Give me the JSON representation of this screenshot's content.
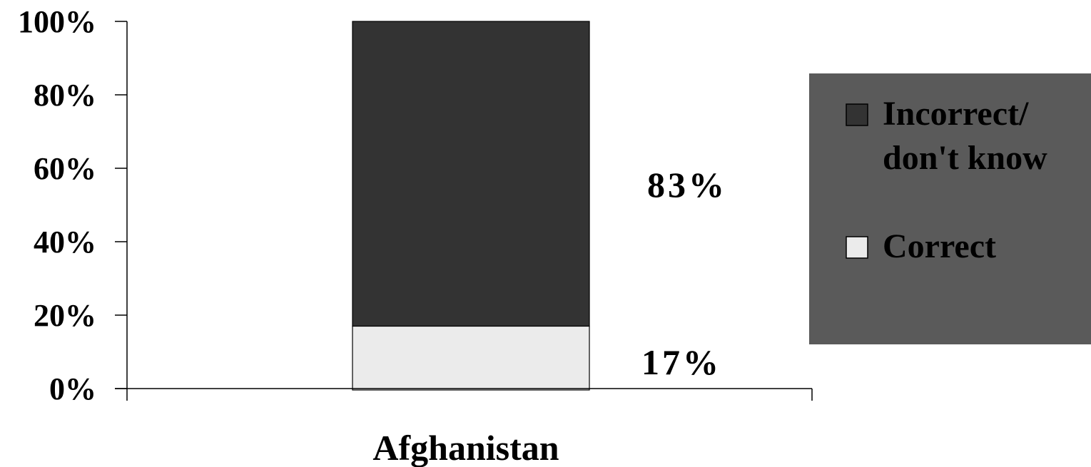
{
  "chart_data": {
    "type": "bar",
    "stacked": true,
    "percent_stacked": true,
    "categories": [
      "Afghanistan"
    ],
    "series": [
      {
        "name": "Correct",
        "values": [
          17
        ],
        "label": "17%",
        "color": "#ebebeb"
      },
      {
        "name": "Incorrect/ don't know",
        "values": [
          83
        ],
        "label": "83%",
        "color": "#333333"
      }
    ],
    "ylim": [
      0,
      100
    ],
    "y_ticks": [
      "0%",
      "20%",
      "40%",
      "60%",
      "80%",
      "100%"
    ],
    "grid": false,
    "legend": {
      "placement": "right",
      "background": "#5a5a5a",
      "entries": [
        {
          "lines": [
            "Incorrect/",
            "don't know"
          ],
          "color": "#333333"
        },
        {
          "lines": [
            "Correct"
          ],
          "color": "#ebebeb"
        }
      ]
    }
  }
}
